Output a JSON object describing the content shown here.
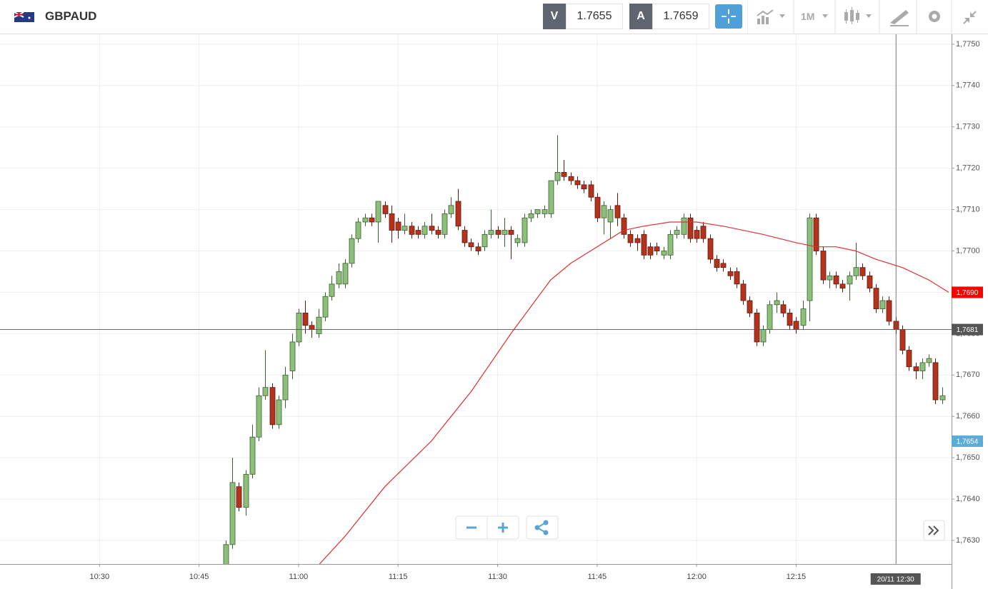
{
  "header": {
    "symbol": "GBPAUD",
    "bid_label": "V",
    "bid": "1.7655",
    "ask_label": "A",
    "ask": "1.7659",
    "timeframe": "1M"
  },
  "chart_data": {
    "type": "candlestick",
    "up_color": "#8cbf7a",
    "down_color": "#b5321c",
    "x": [
      "10:49",
      "10:50",
      "10:51",
      "10:52",
      "10:53",
      "10:54",
      "10:55",
      "10:56",
      "10:57",
      "10:58",
      "10:59",
      "11:00",
      "11:01",
      "11:02",
      "11:03",
      "11:04",
      "11:05",
      "11:06",
      "11:07",
      "11:08",
      "11:09",
      "11:10",
      "11:11",
      "11:12",
      "11:13",
      "11:14",
      "11:15",
      "11:16",
      "11:17",
      "11:18",
      "11:19",
      "11:20",
      "11:21",
      "11:22",
      "11:23",
      "11:24",
      "11:25",
      "11:26",
      "11:27",
      "11:28",
      "11:29",
      "11:30",
      "11:31",
      "11:32",
      "11:33",
      "11:34",
      "11:35",
      "11:36",
      "11:37",
      "11:38",
      "11:39",
      "11:40",
      "11:41",
      "11:42",
      "11:43",
      "11:44",
      "11:45",
      "11:46",
      "11:47",
      "11:48",
      "11:49",
      "11:50",
      "11:51",
      "11:52",
      "11:53",
      "11:54",
      "11:55",
      "11:56",
      "11:57",
      "11:58",
      "11:59",
      "12:00",
      "12:01",
      "12:02",
      "12:03",
      "12:04",
      "12:05",
      "12:06",
      "12:07",
      "12:08",
      "12:09",
      "12:10",
      "12:11",
      "12:12",
      "12:13",
      "12:14",
      "12:15",
      "12:16",
      "12:17",
      "12:18",
      "12:19",
      "12:20",
      "12:21",
      "12:22",
      "12:23",
      "12:24",
      "12:25",
      "12:26",
      "12:27",
      "12:28",
      "12:29",
      "12:30",
      "12:31",
      "12:32",
      "12:33",
      "12:34",
      "12:35",
      "12:36",
      "12:37"
    ],
    "open": [
      1.7624,
      1.7629,
      1.7643,
      1.7638,
      1.7646,
      1.7655,
      1.7665,
      1.7667,
      1.7658,
      1.7664,
      1.7671,
      1.7678,
      1.7685,
      1.7682,
      1.768,
      1.7684,
      1.7689,
      1.7692,
      1.7692,
      1.7697,
      1.7703,
      1.7707,
      1.7708,
      1.7707,
      1.7711,
      1.7709,
      1.7707,
      1.7705,
      1.7706,
      1.7705,
      1.7704,
      1.7706,
      1.7705,
      1.7704,
      1.7709,
      1.7712,
      1.7705,
      1.7702,
      1.7701,
      1.7701,
      1.7704,
      1.7705,
      1.7704,
      1.7705,
      1.7702,
      1.7702,
      1.7708,
      1.7709,
      1.7709,
      1.7709,
      1.7717,
      1.7719,
      1.7718,
      1.7717,
      1.7716,
      1.7716,
      1.7713,
      1.7708,
      1.7707,
      1.7711,
      1.7708,
      1.7704,
      1.7703,
      1.7704,
      1.7701,
      1.7701,
      1.7699,
      1.7699,
      1.7704,
      1.7704,
      1.7708,
      1.7705,
      1.7706,
      1.7703,
      1.7698,
      1.7697,
      1.7695,
      1.7695,
      1.7692,
      1.7688,
      1.7685,
      1.7678,
      1.7681,
      1.7687,
      1.7687,
      1.7685,
      1.7683,
      1.7682,
      1.7688,
      1.7708,
      1.77,
      1.7693,
      1.7694,
      1.7692,
      1.7692,
      1.7694,
      1.7696,
      1.7694,
      1.7691,
      1.7686,
      1.7688,
      1.7683,
      1.7681,
      1.7676,
      1.7672,
      1.7671,
      1.7673,
      1.7673,
      1.7664
    ],
    "high": [
      1.763,
      1.765,
      1.7644,
      1.7647,
      1.7658,
      1.7667,
      1.7676,
      1.7668,
      1.7665,
      1.7672,
      1.768,
      1.7686,
      1.7688,
      1.7683,
      1.7686,
      1.769,
      1.7694,
      1.7697,
      1.7698,
      1.7704,
      1.7708,
      1.7709,
      1.7709,
      1.7712,
      1.7712,
      1.7711,
      1.7708,
      1.7709,
      1.7707,
      1.7706,
      1.7707,
      1.7709,
      1.7706,
      1.771,
      1.7713,
      1.7715,
      1.7706,
      1.7703,
      1.7702,
      1.7705,
      1.771,
      1.7706,
      1.7708,
      1.7706,
      1.7704,
      1.7709,
      1.771,
      1.771,
      1.7711,
      1.7717,
      1.7728,
      1.7722,
      1.7719,
      1.7718,
      1.7717,
      1.7717,
      1.7714,
      1.7712,
      1.7711,
      1.7714,
      1.7709,
      1.7705,
      1.7704,
      1.7705,
      1.7702,
      1.7702,
      1.7701,
      1.7705,
      1.7706,
      1.7709,
      1.7709,
      1.7706,
      1.7707,
      1.7704,
      1.7699,
      1.7698,
      1.7696,
      1.7696,
      1.7693,
      1.7689,
      1.7686,
      1.7682,
      1.7688,
      1.769,
      1.7688,
      1.7686,
      1.7684,
      1.7688,
      1.7709,
      1.7709,
      1.7701,
      1.7695,
      1.7695,
      1.7693,
      1.7695,
      1.7702,
      1.7697,
      1.7695,
      1.7692,
      1.7689,
      1.7689,
      1.7684,
      1.7682,
      1.7677,
      1.7673,
      1.7674,
      1.7675,
      1.7674,
      1.7667
    ],
    "low": [
      1.7623,
      1.7628,
      1.7637,
      1.7636,
      1.7645,
      1.7654,
      1.7664,
      1.7657,
      1.7657,
      1.7662,
      1.7669,
      1.7677,
      1.768,
      1.7679,
      1.7679,
      1.7683,
      1.7688,
      1.7691,
      1.7691,
      1.7696,
      1.7702,
      1.7706,
      1.7706,
      1.7702,
      1.7708,
      1.7702,
      1.7703,
      1.7704,
      1.7703,
      1.7703,
      1.7703,
      1.7704,
      1.7703,
      1.7703,
      1.7708,
      1.7705,
      1.7701,
      1.77,
      1.7699,
      1.77,
      1.7703,
      1.7703,
      1.7701,
      1.7698,
      1.7701,
      1.7701,
      1.7707,
      1.7708,
      1.7708,
      1.7708,
      1.7716,
      1.7717,
      1.7716,
      1.7715,
      1.7714,
      1.7712,
      1.7707,
      1.7704,
      1.7703,
      1.7706,
      1.7703,
      1.7701,
      1.77,
      1.7698,
      1.7698,
      1.7699,
      1.7698,
      1.7698,
      1.7703,
      1.7703,
      1.7702,
      1.7702,
      1.7702,
      1.7697,
      1.7695,
      1.7695,
      1.7693,
      1.7691,
      1.7687,
      1.7684,
      1.7677,
      1.7677,
      1.768,
      1.7685,
      1.7684,
      1.7681,
      1.768,
      1.7681,
      1.7683,
      1.7699,
      1.7692,
      1.7691,
      1.7691,
      1.769,
      1.7688,
      1.7693,
      1.7693,
      1.769,
      1.7685,
      1.7685,
      1.7682,
      1.768,
      1.7675,
      1.7671,
      1.7669,
      1.7669,
      1.7672,
      1.7663,
      1.7663
    ],
    "close": [
      1.7629,
      1.7644,
      1.7638,
      1.7646,
      1.7655,
      1.7665,
      1.7667,
      1.7658,
      1.7664,
      1.767,
      1.7678,
      1.7685,
      1.7682,
      1.7681,
      1.7684,
      1.7689,
      1.7692,
      1.7695,
      1.7697,
      1.7703,
      1.7707,
      1.7708,
      1.7707,
      1.7712,
      1.7709,
      1.7705,
      1.7705,
      1.7706,
      1.7704,
      1.7704,
      1.7706,
      1.7705,
      1.7704,
      1.7709,
      1.7711,
      1.7706,
      1.7702,
      1.7701,
      1.77,
      1.7704,
      1.7705,
      1.7704,
      1.7705,
      1.7704,
      1.7703,
      1.7708,
      1.7709,
      1.771,
      1.771,
      1.7717,
      1.7719,
      1.7718,
      1.7717,
      1.7716,
      1.7715,
      1.7713,
      1.7708,
      1.7711,
      1.771,
      1.7708,
      1.7704,
      1.7702,
      1.7702,
      1.7699,
      1.7699,
      1.77,
      1.77,
      1.7704,
      1.7705,
      1.7708,
      1.7703,
      1.7703,
      1.7703,
      1.7698,
      1.7696,
      1.7696,
      1.7694,
      1.7692,
      1.7688,
      1.7685,
      1.7678,
      1.7681,
      1.7687,
      1.7688,
      1.7685,
      1.7682,
      1.7681,
      1.7686,
      1.7708,
      1.77,
      1.7693,
      1.7694,
      1.7692,
      1.7691,
      1.7694,
      1.7696,
      1.7694,
      1.7691,
      1.7686,
      1.7688,
      1.7683,
      1.7681,
      1.7676,
      1.7672,
      1.7671,
      1.7673,
      1.7674,
      1.7664,
      1.7665
    ],
    "lines": [
      {
        "color": "#e03030",
        "x": [
          "11:03",
          "11:07",
          "11:13",
          "11:20",
          "11:26",
          "11:32",
          "11:38",
          "11:41",
          "11:45",
          "11:49",
          "11:52",
          "11:56",
          "12:00",
          "12:04",
          "12:07",
          "12:10",
          "12:15",
          "12:18",
          "12:21",
          "12:24",
          "12:27",
          "12:31",
          "12:35",
          "12:38"
        ],
        "values": [
          1.7624,
          1.7631,
          1.7643,
          1.7654,
          1.7666,
          1.768,
          1.7693,
          1.7697,
          1.7701,
          1.7705,
          1.7706,
          1.7707,
          1.7707,
          1.7706,
          1.7705,
          1.7704,
          1.7702,
          1.7701,
          1.7701,
          1.77,
          1.7698,
          1.7696,
          1.7693,
          1.769
        ]
      }
    ],
    "xlim": [
      "10:15",
      "12:38"
    ],
    "xticks": [
      "10:30",
      "10:45",
      "11:00",
      "11:15",
      "11:30",
      "11:45",
      "12:00",
      "12:15"
    ],
    "ylim": [
      1.76243,
      1.77524
    ],
    "yticks": [
      {
        "value": 1.763,
        "label": "1,7630"
      },
      {
        "value": 1.764,
        "label": "1,7640"
      },
      {
        "value": 1.765,
        "label": "1,7650"
      },
      {
        "value": 1.766,
        "label": "1,7660"
      },
      {
        "value": 1.767,
        "label": "1,7670"
      },
      {
        "value": 1.768,
        "label": "1,7680"
      },
      {
        "value": 1.769,
        "label": "1,7690"
      },
      {
        "value": 1.77,
        "label": "1,7700"
      },
      {
        "value": 1.771,
        "label": "1,7710"
      },
      {
        "value": 1.772,
        "label": "1,7720"
      },
      {
        "value": 1.773,
        "label": "1,7730"
      },
      {
        "value": 1.774,
        "label": "1,7740"
      },
      {
        "value": 1.775,
        "label": "1,7750"
      }
    ],
    "grid": true,
    "price_labels": [
      {
        "value": 1.769,
        "label": "1,7690",
        "color": "#ff0000"
      },
      {
        "value": 1.7654,
        "label": "1,7654",
        "color": "#5aaed6"
      }
    ],
    "crosshair": {
      "x": "12:30",
      "x_label": "20/11 12:30",
      "y": {
        "value": 1.7681,
        "label": "1,7681"
      },
      "color": "#555555"
    }
  }
}
